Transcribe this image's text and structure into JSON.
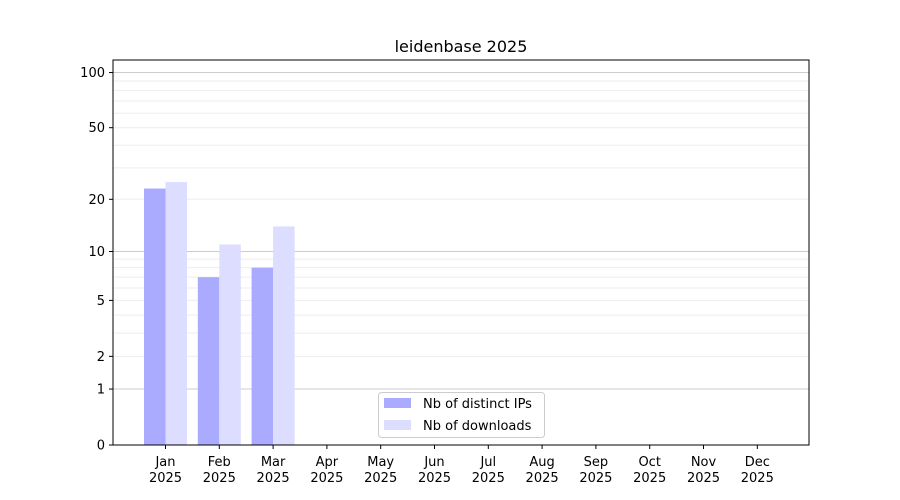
{
  "chart_data": {
    "type": "bar",
    "title": "leidenbase 2025",
    "xlabel": "",
    "ylabel": "",
    "yscale": "log(1+y)",
    "ylim": [
      0,
      117
    ],
    "yticks": [
      0,
      1,
      2,
      5,
      10,
      20,
      50,
      100
    ],
    "grid": true,
    "legend_position": "bottom-center",
    "categories": [
      "Jan\n2025",
      "Feb\n2025",
      "Mar\n2025",
      "Apr\n2025",
      "May\n2025",
      "Jun\n2025",
      "Jul\n2025",
      "Aug\n2025",
      "Sep\n2025",
      "Oct\n2025",
      "Nov\n2025",
      "Dec\n2025"
    ],
    "series": [
      {
        "name": "Nb of distinct IPs",
        "color": "#aaaaff",
        "values": [
          23,
          7,
          8,
          0,
          0,
          0,
          0,
          0,
          0,
          0,
          0,
          0
        ]
      },
      {
        "name": "Nb of downloads",
        "color": "#ddddff",
        "values": [
          25,
          11,
          14,
          0,
          0,
          0,
          0,
          0,
          0,
          0,
          0,
          0
        ]
      }
    ]
  }
}
